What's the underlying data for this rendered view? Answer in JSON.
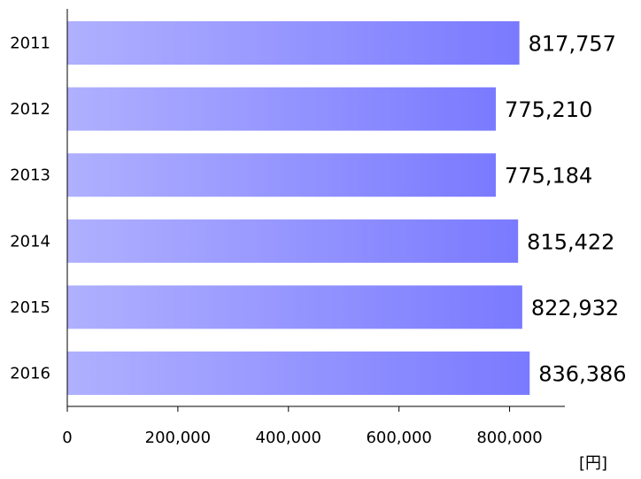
{
  "chart_data": {
    "type": "bar",
    "orientation": "horizontal",
    "categories": [
      "2011",
      "2012",
      "2013",
      "2014",
      "2015",
      "2016"
    ],
    "values": [
      817757,
      775210,
      775184,
      815422,
      822932,
      836386
    ],
    "data_labels": [
      "817,757",
      "775,210",
      "775,184",
      "815,422",
      "822,932",
      "836,386"
    ],
    "xlim": [
      0,
      900000
    ],
    "x_ticks": [
      0,
      200000,
      400000,
      600000,
      800000
    ],
    "x_tick_labels": [
      "0",
      "200,000",
      "400,000",
      "600,000",
      "800,000"
    ],
    "unit": "[円]",
    "title": "",
    "grid": false,
    "legend": "none",
    "colors": {
      "bar_start": "#b0b0ff",
      "bar_end": "#7a7aff",
      "axis": "#000000"
    }
  }
}
